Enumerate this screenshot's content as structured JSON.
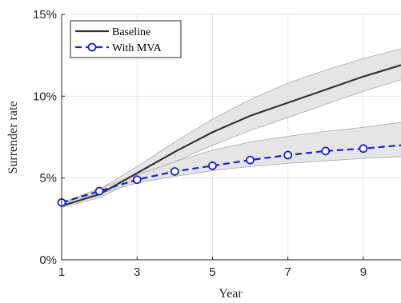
{
  "chart_data": {
    "type": "line",
    "xlabel": "Year",
    "ylabel": "Surrender rate",
    "xlim": [
      1,
      10
    ],
    "ylim": [
      0,
      15
    ],
    "xticks": [
      1,
      3,
      5,
      7,
      9
    ],
    "yticks": [
      0,
      5,
      10,
      15
    ],
    "xtick_labels": [
      "1",
      "3",
      "5",
      "7",
      "9"
    ],
    "ytick_labels": [
      "0%",
      "5%",
      "10%",
      "15%"
    ],
    "grid": true,
    "legend_position": "top-left",
    "x": [
      1,
      2,
      3,
      4,
      5,
      6,
      7,
      8,
      9,
      10
    ],
    "series": [
      {
        "name": "Baseline",
        "color": "#333333",
        "style": "solid",
        "values": [
          3.3,
          4.0,
          5.3,
          6.6,
          7.8,
          8.8,
          9.6,
          10.4,
          11.2,
          11.9
        ],
        "band_upper": [
          3.4,
          4.3,
          5.7,
          7.2,
          8.6,
          9.8,
          10.8,
          11.6,
          12.3,
          12.9
        ],
        "band_lower": [
          3.2,
          3.8,
          4.9,
          6.0,
          7.0,
          7.9,
          8.7,
          9.5,
          10.3,
          11.0
        ]
      },
      {
        "name": "With MVA",
        "color": "#1f1fcf",
        "style": "dashed",
        "marker": "circle",
        "values": [
          3.5,
          4.2,
          4.9,
          5.4,
          5.75,
          6.1,
          6.4,
          6.65,
          6.8,
          7.0
        ],
        "band_upper": [
          3.5,
          4.35,
          5.2,
          6.0,
          6.7,
          7.2,
          7.55,
          7.85,
          8.1,
          8.4
        ],
        "band_lower": [
          3.5,
          4.05,
          4.7,
          5.1,
          5.45,
          5.7,
          5.9,
          6.05,
          6.2,
          6.3
        ]
      }
    ],
    "band_color": "#e0e0e0",
    "band_edge_color": "#aaaaaa"
  }
}
